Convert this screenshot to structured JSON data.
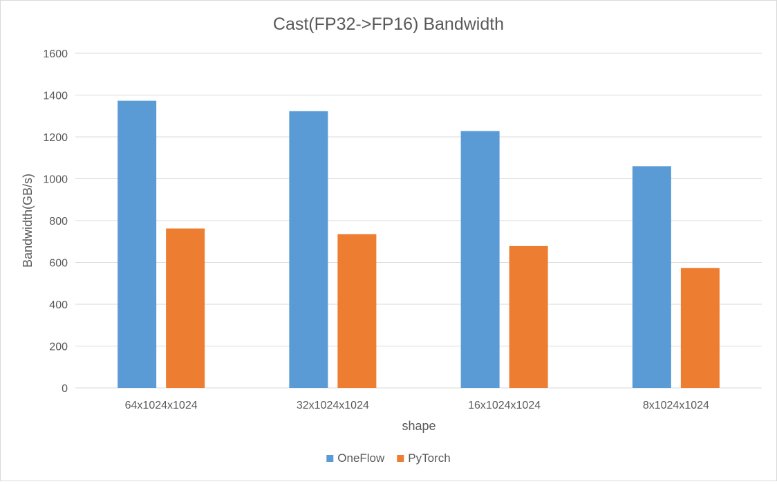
{
  "chart_data": {
    "type": "bar",
    "title": "Cast(FP32->FP16) Bandwidth",
    "xlabel": "shape",
    "ylabel": "Bandwidth(GB/s)",
    "categories": [
      "64x1024x1024",
      "32x1024x1024",
      "16x1024x1024",
      "8x1024x1024"
    ],
    "series": [
      {
        "name": "OneFlow",
        "color": "#5b9bd5",
        "values": [
          1373,
          1323,
          1228,
          1060
        ]
      },
      {
        "name": "PyTorch",
        "color": "#ed7d31",
        "values": [
          762,
          735,
          678,
          573
        ]
      }
    ],
    "ylim": [
      0,
      1600
    ],
    "yticks": [
      0,
      200,
      400,
      600,
      800,
      1000,
      1200,
      1400,
      1600
    ],
    "grid": true,
    "legend": "bottom"
  }
}
